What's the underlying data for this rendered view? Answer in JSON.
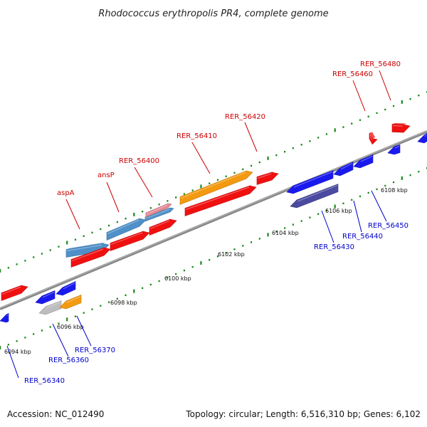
{
  "title": "Rhodococcus erythropolis PR4, complete genome",
  "footer": {
    "accession": "Accession: NC_012490",
    "summary": "Topology: circular; Length: 6,516,310 bp; Genes: 6,102"
  },
  "colors": {
    "forward_gene": "#f01010",
    "reverse_gene": "#1a1aee",
    "highlight": "#f39a10",
    "named_gene": "#4f90c8",
    "pseudogene": "#bdbdbd",
    "reverse_cds_dark": "#4a4aa0",
    "partial": "#e38a94",
    "backbone": "#888888",
    "tick": "#1a8a1a",
    "forward_label": "#cc0000",
    "reverse_label": "#0000cc"
  },
  "ticks": [
    {
      "label": "6094 kbp"
    },
    {
      "label": "6096 kbp"
    },
    {
      "label": "6098 kbp"
    },
    {
      "label": "6100 kbp"
    },
    {
      "label": "6102 kbp"
    },
    {
      "label": "6104 kbp"
    },
    {
      "label": "6106 kbp"
    },
    {
      "label": "6108 kbp"
    }
  ],
  "forward_labels": [
    {
      "text": "aspA"
    },
    {
      "text": "ansP"
    },
    {
      "text": "RER_56400"
    },
    {
      "text": "RER_56410"
    },
    {
      "text": "RER_56420"
    },
    {
      "text": "RER_56460"
    },
    {
      "text": "RER_56480"
    }
  ],
  "reverse_labels": [
    {
      "text": "RER_56340"
    },
    {
      "text": "RER_56360"
    },
    {
      "text": "RER_56370"
    },
    {
      "text": "RER_56430"
    },
    {
      "text": "RER_56440"
    },
    {
      "text": "RER_56450"
    }
  ]
}
